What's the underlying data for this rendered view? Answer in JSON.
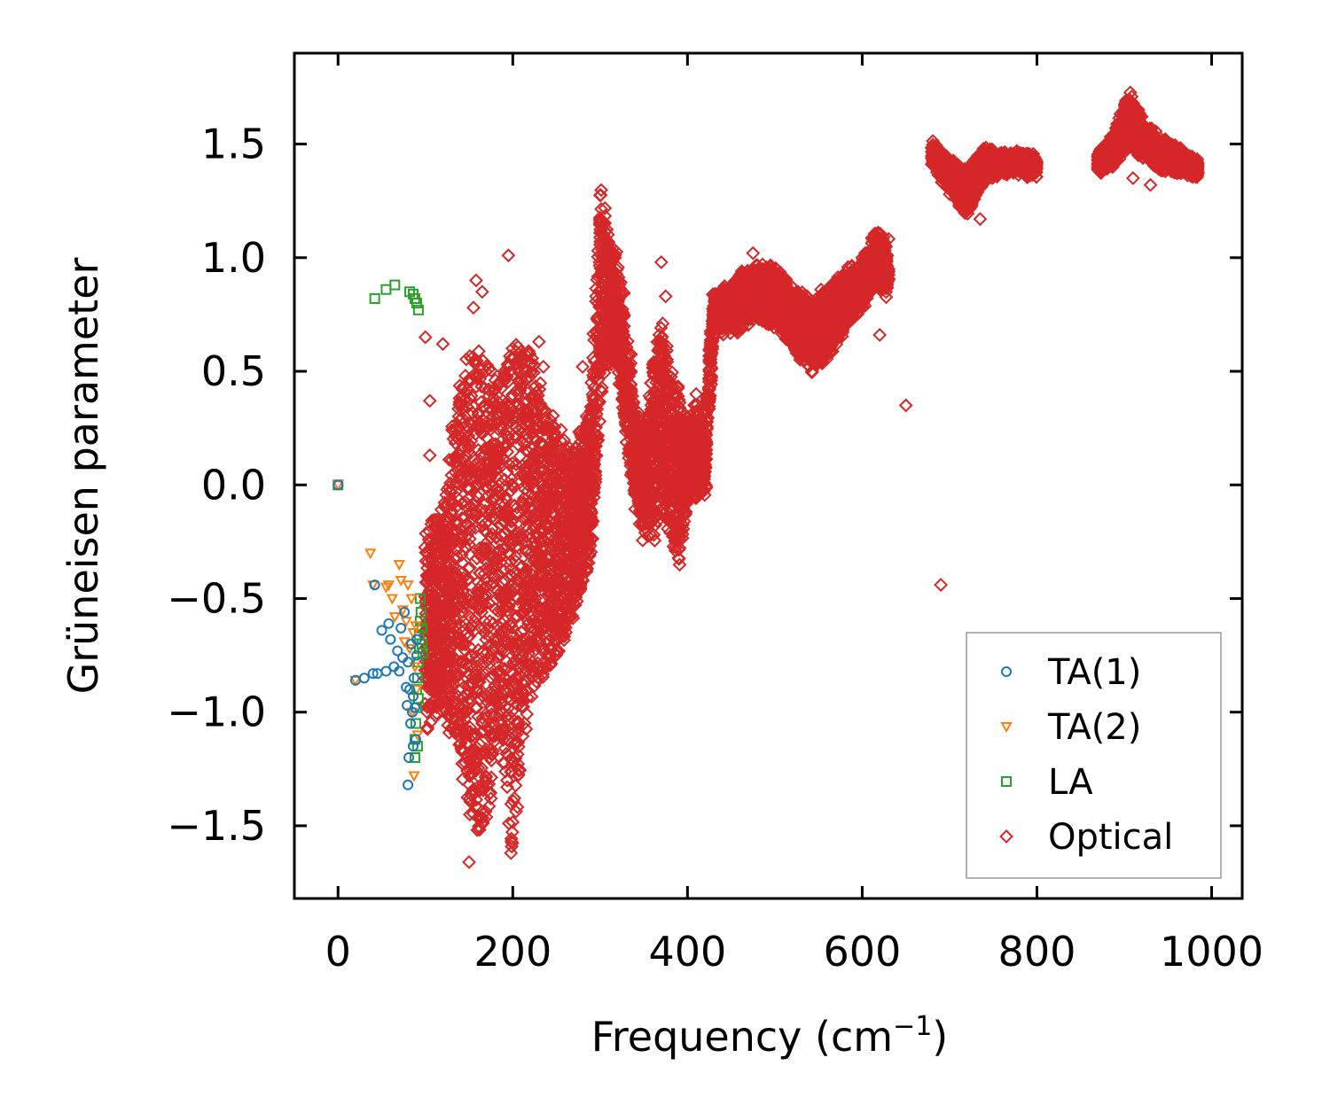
{
  "chart_data": {
    "type": "scatter",
    "title": "",
    "xlabel": "Frequency (cm",
    "xlabel_sup": "−1",
    "xlabel_tail": ")",
    "ylabel": "Grüneisen parameter",
    "xlim": [
      -50,
      1035
    ],
    "ylim": [
      -1.82,
      1.9
    ],
    "xticks": [
      0,
      200,
      400,
      600,
      800,
      1000
    ],
    "xtick_labels": [
      "0",
      "200",
      "400",
      "600",
      "800",
      "1000"
    ],
    "yticks": [
      -1.5,
      -1.0,
      -0.5,
      0.0,
      0.5,
      1.0,
      1.5
    ],
    "ytick_labels": [
      "−1.5",
      "−1.0",
      "−0.5",
      "0.0",
      "0.5",
      "1.0",
      "1.5"
    ],
    "legend_position": "lower-right",
    "series": [
      {
        "name": "TA(1)",
        "marker": "circle",
        "color": "#1f77b4",
        "points": [
          [
            0,
            0.0
          ],
          [
            20,
            -0.86
          ],
          [
            30,
            -0.85
          ],
          [
            40,
            -0.83
          ],
          [
            42,
            -0.44
          ],
          [
            45,
            -0.83
          ],
          [
            50,
            -0.64
          ],
          [
            55,
            -0.82
          ],
          [
            58,
            -0.61
          ],
          [
            60,
            -0.68
          ],
          [
            64,
            -0.8
          ],
          [
            68,
            -0.73
          ],
          [
            70,
            -0.82
          ],
          [
            72,
            -0.63
          ],
          [
            74,
            -0.76
          ],
          [
            76,
            -0.56
          ],
          [
            78,
            -0.89
          ],
          [
            79,
            -0.97
          ],
          [
            80,
            -1.32
          ],
          [
            80,
            -0.78
          ],
          [
            81,
            -1.2
          ],
          [
            82,
            -0.9
          ],
          [
            83,
            -1.05
          ],
          [
            84,
            -0.7
          ],
          [
            85,
            -1.0
          ],
          [
            86,
            -0.93
          ],
          [
            86,
            -1.15
          ],
          [
            87,
            -0.85
          ],
          [
            88,
            -0.98
          ],
          [
            89,
            -1.12
          ],
          [
            90,
            -0.75
          ],
          [
            90,
            -0.68
          ]
        ]
      },
      {
        "name": "TA(2)",
        "marker": "triangle-down",
        "color": "#ff7f0e",
        "points": [
          [
            0,
            0.0
          ],
          [
            20,
            -0.86
          ],
          [
            37,
            -0.3
          ],
          [
            40,
            -0.44
          ],
          [
            55,
            -0.45
          ],
          [
            58,
            -0.44
          ],
          [
            62,
            -0.5
          ],
          [
            65,
            -0.58
          ],
          [
            70,
            -0.35
          ],
          [
            72,
            -0.42
          ],
          [
            74,
            -0.55
          ],
          [
            76,
            -0.69
          ],
          [
            78,
            -0.6
          ],
          [
            80,
            -0.44
          ],
          [
            82,
            -0.72
          ],
          [
            84,
            -0.5
          ],
          [
            85,
            -1.0
          ],
          [
            86,
            -0.65
          ],
          [
            87,
            -1.28
          ],
          [
            88,
            -0.8
          ],
          [
            89,
            -0.62
          ],
          [
            90,
            -0.9
          ],
          [
            91,
            -1.1
          ]
        ]
      },
      {
        "name": "LA",
        "marker": "square",
        "color": "#2ca02c",
        "points": [
          [
            0,
            0.0
          ],
          [
            42,
            0.82
          ],
          [
            55,
            0.86
          ],
          [
            65,
            0.88
          ],
          [
            82,
            0.85
          ],
          [
            86,
            0.84
          ],
          [
            88,
            0.82
          ],
          [
            90,
            0.8
          ],
          [
            92,
            0.77
          ],
          [
            88,
            -1.2
          ],
          [
            88,
            -1.12
          ],
          [
            89,
            -1.05
          ],
          [
            90,
            -0.98
          ],
          [
            90,
            -0.9
          ],
          [
            91,
            -0.85
          ],
          [
            92,
            -0.78
          ],
          [
            93,
            -0.72
          ],
          [
            93,
            -0.66
          ],
          [
            94,
            -0.6
          ],
          [
            94,
            -0.5
          ],
          [
            95,
            -0.56
          ],
          [
            96,
            -0.63
          ],
          [
            96,
            -0.7
          ],
          [
            97,
            -0.74
          ],
          [
            92,
            -0.94
          ],
          [
            91,
            -1.15
          ]
        ]
      },
      {
        "name": "Optical",
        "marker": "diamond",
        "color": "#d62728",
        "envelope": [
          [
            100,
            -1.05,
            -0.25,
            0.55
          ],
          [
            110,
            -0.95,
            -0.2,
            0.45
          ],
          [
            120,
            -0.95,
            -0.15,
            0.35
          ],
          [
            130,
            -1.05,
            0.2,
            0.25
          ],
          [
            140,
            -1.2,
            0.45,
            0.3
          ],
          [
            150,
            -1.4,
            0.55,
            0.2
          ],
          [
            160,
            -1.55,
            0.6,
            0.25
          ],
          [
            170,
            -1.5,
            0.55,
            0.2
          ],
          [
            180,
            -1.15,
            0.45,
            0.3
          ],
          [
            190,
            -1.35,
            0.5,
            0.25
          ],
          [
            200,
            -1.6,
            0.65,
            0.3
          ],
          [
            210,
            -1.25,
            0.65,
            0.3
          ],
          [
            220,
            -0.95,
            0.55,
            0.25
          ],
          [
            230,
            -0.85,
            0.45,
            0.2
          ],
          [
            240,
            -0.8,
            0.3,
            0.2
          ],
          [
            250,
            -0.75,
            0.25,
            0.2
          ],
          [
            260,
            -0.65,
            0.2,
            0.2
          ],
          [
            270,
            -0.55,
            0.15,
            0.2
          ],
          [
            280,
            -0.45,
            0.25,
            0.2
          ],
          [
            290,
            -0.3,
            0.35,
            0.2
          ],
          [
            300,
            0.35,
            1.3,
            0.35
          ],
          [
            310,
            0.6,
            1.05,
            0.4
          ],
          [
            320,
            0.55,
            0.95,
            0.3
          ],
          [
            330,
            0.25,
            0.7,
            0.3
          ],
          [
            340,
            -0.05,
            0.3,
            0.3
          ],
          [
            350,
            -0.2,
            0.2,
            0.25
          ],
          [
            360,
            -0.25,
            0.5,
            0.3
          ],
          [
            370,
            -0.05,
            0.7,
            0.3
          ],
          [
            380,
            -0.25,
            0.5,
            0.35
          ],
          [
            390,
            -0.3,
            0.35,
            0.3
          ],
          [
            400,
            -0.05,
            0.25,
            0.25
          ],
          [
            410,
            -0.05,
            0.35,
            0.2
          ],
          [
            420,
            0.0,
            0.2,
            0.2
          ],
          [
            430,
            0.72,
            0.82,
            0.12
          ],
          [
            440,
            0.68,
            0.85,
            0.15
          ],
          [
            460,
            0.7,
            0.92,
            0.15
          ],
          [
            480,
            0.75,
            0.95,
            0.15
          ],
          [
            500,
            0.72,
            0.95,
            0.15
          ],
          [
            520,
            0.62,
            0.85,
            0.15
          ],
          [
            540,
            0.52,
            0.8,
            0.18
          ],
          [
            560,
            0.58,
            0.85,
            0.18
          ],
          [
            580,
            0.7,
            0.92,
            0.15
          ],
          [
            600,
            0.8,
            0.98,
            0.15
          ],
          [
            615,
            0.88,
            1.1,
            0.2
          ],
          [
            630,
            0.85,
            1.05,
            0.18
          ],
          [
            680,
            1.42,
            1.5,
            0.08
          ],
          [
            700,
            1.3,
            1.42,
            0.1
          ],
          [
            720,
            1.2,
            1.38,
            0.1
          ],
          [
            740,
            1.35,
            1.48,
            0.1
          ],
          [
            760,
            1.38,
            1.45,
            0.1
          ],
          [
            780,
            1.38,
            1.45,
            0.1
          ],
          [
            800,
            1.36,
            1.44,
            0.1
          ],
          [
            870,
            1.38,
            1.45,
            0.08
          ],
          [
            890,
            1.42,
            1.55,
            0.1
          ],
          [
            905,
            1.5,
            1.72,
            0.12
          ],
          [
            920,
            1.45,
            1.6,
            0.12
          ],
          [
            940,
            1.4,
            1.52,
            0.1
          ],
          [
            960,
            1.38,
            1.48,
            0.08
          ],
          [
            985,
            1.36,
            1.42,
            0.06
          ]
        ],
        "outliers": [
          [
            100,
            0.65
          ],
          [
            105,
            0.37
          ],
          [
            105,
            0.13
          ],
          [
            120,
            0.62
          ],
          [
            155,
            0.78
          ],
          [
            158,
            0.9
          ],
          [
            165,
            0.85
          ],
          [
            175,
            -1.38
          ],
          [
            150,
            -1.66
          ],
          [
            195,
            1.01
          ],
          [
            198,
            -1.62
          ],
          [
            230,
            0.63
          ],
          [
            235,
            0.52
          ],
          [
            280,
            0.52
          ],
          [
            290,
            0.45
          ],
          [
            305,
            0.95
          ],
          [
            370,
            0.98
          ],
          [
            375,
            0.83
          ],
          [
            410,
            0.4
          ],
          [
            475,
            1.02
          ],
          [
            620,
            0.66
          ],
          [
            650,
            0.35
          ],
          [
            690,
            -0.44
          ],
          [
            600,
            1.0
          ],
          [
            735,
            1.17
          ],
          [
            930,
            1.32
          ],
          [
            910,
            1.35
          ]
        ]
      }
    ]
  }
}
